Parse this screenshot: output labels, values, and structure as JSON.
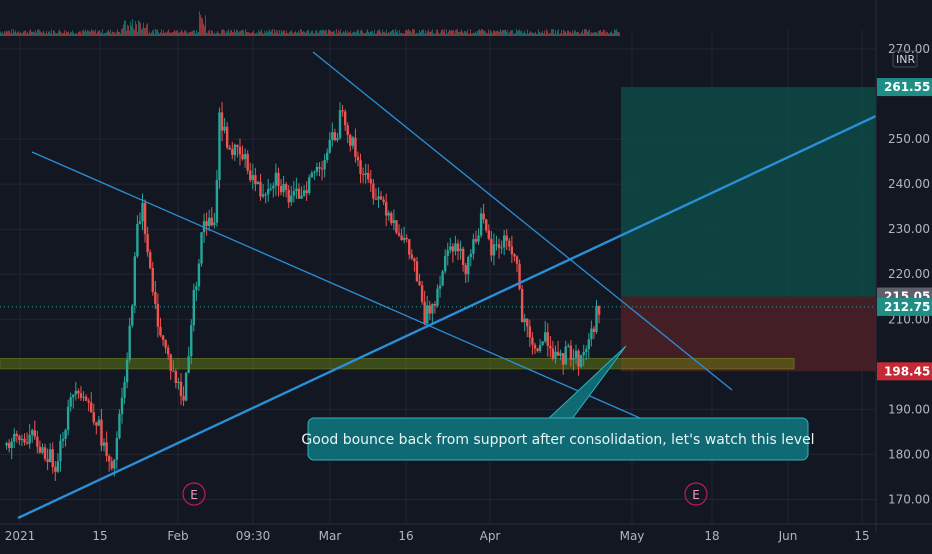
{
  "theme": {
    "background": "#131722",
    "grid": "#232632",
    "axis_text": "#b2b5be",
    "candle_up": "#26a69a",
    "candle_down": "#ef5350",
    "trendline": "#2a8fd8",
    "profit_zone": "#0e4a47",
    "loss_zone": "#4a1f26",
    "support_zone": "#6f8a12",
    "callout_bg": "#0f6a73",
    "callout_border": "#2fb1b8"
  },
  "chart_data": {
    "type": "candlestick",
    "currency": "INR",
    "ylim": [
      165,
      272
    ],
    "y_ticks": [
      "270.00",
      "250.00",
      "240.00",
      "230.00",
      "220.00",
      "210.00",
      "190.00",
      "180.00",
      "170.00"
    ],
    "x_ticks": [
      "2021",
      "15",
      "Feb",
      "09:30",
      "Mar",
      "16",
      "Apr",
      "May",
      "18",
      "Jun",
      "15"
    ],
    "price_labels": [
      {
        "text": "261.55",
        "value": 261.55,
        "kind": "target"
      },
      {
        "text": "215.05",
        "value": 215.05,
        "kind": "entry"
      },
      {
        "text": "212.75",
        "value": 212.75,
        "kind": "last"
      },
      {
        "text": "198.45",
        "value": 198.45,
        "kind": "stop"
      }
    ],
    "trade_setup": {
      "entry": 215.05,
      "target": 261.55,
      "stop": 198.45,
      "last_price": 212.75
    },
    "support_zone": [
      199.0,
      201.3
    ],
    "earnings_markers": [
      "E",
      "E"
    ],
    "annotation": "Good bounce back from support after consolidation, let's watch this level",
    "price_path": [
      [
        0,
        182
      ],
      [
        5,
        184
      ],
      [
        10,
        178
      ],
      [
        14,
        196
      ],
      [
        18,
        188
      ],
      [
        21,
        175
      ],
      [
        24,
        200
      ],
      [
        26,
        230
      ],
      [
        27,
        236
      ],
      [
        29,
        215
      ],
      [
        31,
        205
      ],
      [
        33,
        198
      ],
      [
        35,
        192
      ],
      [
        37,
        215
      ],
      [
        39,
        232
      ],
      [
        41,
        230
      ],
      [
        42,
        255
      ],
      [
        44,
        248
      ],
      [
        47,
        245
      ],
      [
        50,
        238
      ],
      [
        53,
        242
      ],
      [
        56,
        236
      ],
      [
        59,
        240
      ],
      [
        62,
        245
      ],
      [
        65,
        252
      ],
      [
        66,
        258
      ],
      [
        67,
        252
      ],
      [
        69,
        245
      ],
      [
        71,
        240
      ],
      [
        74,
        236
      ],
      [
        77,
        230
      ],
      [
        80,
        222
      ],
      [
        82,
        210
      ],
      [
        84,
        215
      ],
      [
        87,
        228
      ],
      [
        90,
        222
      ],
      [
        93,
        232
      ],
      [
        95,
        225
      ],
      [
        98,
        228
      ],
      [
        100,
        222
      ],
      [
        101,
        210
      ],
      [
        103,
        203
      ],
      [
        106,
        206
      ],
      [
        108,
        200
      ],
      [
        110,
        203
      ],
      [
        112,
        201
      ],
      [
        114,
        205
      ],
      [
        116,
        213
      ]
    ]
  }
}
